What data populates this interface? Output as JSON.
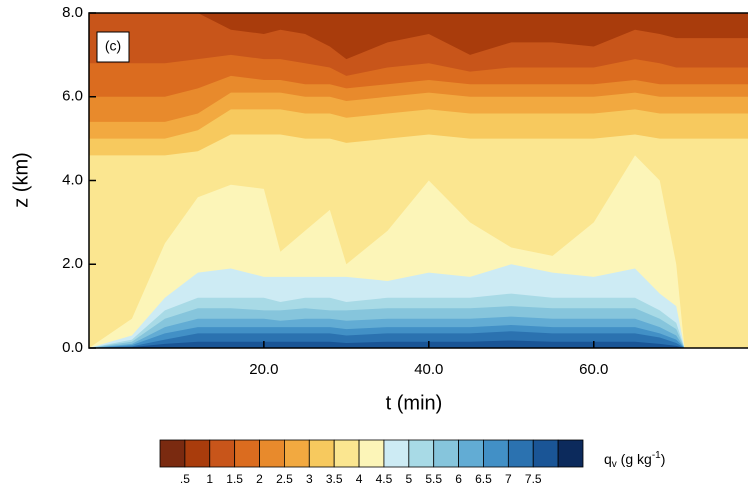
{
  "chart_data": {
    "type": "contour",
    "annotation": "(c)",
    "x_label": "t (min)",
    "y_label": "z (km)",
    "xlim": [
      -1.2,
      78.7
    ],
    "ylim": [
      0,
      8
    ],
    "xticks": [
      {
        "value": 20,
        "label": "20.0"
      },
      {
        "value": 40,
        "label": "40.0"
      },
      {
        "value": 60,
        "label": "60.0"
      }
    ],
    "yticks": [
      {
        "value": 0,
        "label": "0.0"
      },
      {
        "value": 2,
        "label": "2.0"
      },
      {
        "value": 4,
        "label": "4.0"
      },
      {
        "value": 6,
        "label": "6.0"
      },
      {
        "value": 8,
        "label": "8.0"
      }
    ],
    "colorbar_label_parts": [
      "q",
      "v",
      " (g kg",
      "-1",
      ")"
    ],
    "levels": [
      {
        "value": 0.5,
        "label": ".5"
      },
      1,
      1.5,
      2,
      2.5,
      3,
      3.5,
      4,
      4.5,
      5,
      5.5,
      6,
      6.5,
      7,
      7.5
    ],
    "colors": [
      "#7a2a10",
      "#a93c0c",
      "#c8551a",
      "#db6c1f",
      "#e88a2c",
      "#f2a940",
      "#f7c95e",
      "#fbe690",
      "#fcf5b8",
      "#cdebf4",
      "#a8dae6",
      "#86c5dc",
      "#62acd4",
      "#4290c6",
      "#2b72b0",
      "#1a5596",
      "#0c2a5c"
    ],
    "x": [
      -1.2,
      4,
      8,
      12,
      16,
      20,
      22,
      25,
      28,
      30,
      35,
      40,
      45,
      50,
      55,
      60,
      65,
      68,
      70,
      71,
      78.7
    ],
    "contour_heights": [
      [
        8,
        8,
        8,
        8,
        8,
        8,
        8,
        8,
        8,
        8,
        8,
        8,
        8,
        8,
        8,
        8,
        8,
        8,
        8,
        8,
        8
      ],
      [
        8,
        8,
        8,
        8,
        7.6,
        7.5,
        7.6,
        7.5,
        7.2,
        6.9,
        7.3,
        7.5,
        7.0,
        7.3,
        7.3,
        7.2,
        7.6,
        7.5,
        7.4,
        7.4,
        7.4
      ],
      [
        6.8,
        6.8,
        6.8,
        6.9,
        7.0,
        6.9,
        6.9,
        6.8,
        6.7,
        6.5,
        6.7,
        6.8,
        6.6,
        6.7,
        6.7,
        6.7,
        6.9,
        6.8,
        6.7,
        6.7,
        6.7
      ],
      [
        6.0,
        6.0,
        6.0,
        6.2,
        6.5,
        6.4,
        6.4,
        6.3,
        6.3,
        6.2,
        6.3,
        6.4,
        6.3,
        6.3,
        6.3,
        6.3,
        6.4,
        6.3,
        6.3,
        6.3,
        6.3
      ],
      [
        5.4,
        5.4,
        5.4,
        5.6,
        6.1,
        6.1,
        6.1,
        6.0,
        6.0,
        5.9,
        6.0,
        6.1,
        6.0,
        6.0,
        6.0,
        6.0,
        6.1,
        6.0,
        6.0,
        6.0,
        6.0
      ],
      [
        5.0,
        5.0,
        5.0,
        5.2,
        5.7,
        5.7,
        5.7,
        5.6,
        5.6,
        5.5,
        5.6,
        5.7,
        5.6,
        5.6,
        5.6,
        5.6,
        5.7,
        5.6,
        5.6,
        5.6,
        5.6
      ],
      [
        4.6,
        4.6,
        4.6,
        4.7,
        5.1,
        5.1,
        5.1,
        5.0,
        5.0,
        4.9,
        5.0,
        5.1,
        5.0,
        5.0,
        5.0,
        5.0,
        5.1,
        5.0,
        5.0,
        5.0,
        5.0
      ],
      [
        0,
        0.7,
        2.5,
        3.6,
        3.9,
        3.8,
        2.3,
        2.8,
        3.3,
        2.0,
        2.8,
        4.0,
        3.0,
        2.4,
        2.2,
        3.0,
        4.6,
        4.0,
        2.0,
        0,
        0
      ],
      [
        0,
        0.3,
        1.2,
        1.8,
        1.9,
        1.7,
        1.7,
        1.7,
        1.7,
        1.7,
        1.6,
        1.8,
        1.7,
        2.0,
        1.8,
        1.7,
        1.9,
        1.3,
        1.0,
        0,
        0
      ],
      [
        0,
        0.2,
        0.9,
        1.2,
        1.2,
        1.2,
        1.1,
        1.2,
        1.2,
        1.1,
        1.2,
        1.2,
        1.2,
        1.3,
        1.2,
        1.2,
        1.2,
        0.9,
        0.6,
        0,
        0
      ],
      [
        0,
        0.15,
        0.7,
        0.95,
        0.95,
        0.9,
        0.9,
        0.95,
        0.9,
        0.9,
        0.95,
        0.95,
        0.95,
        1.0,
        0.95,
        0.95,
        0.95,
        0.7,
        0.45,
        0,
        0
      ],
      [
        0,
        0.1,
        0.5,
        0.7,
        0.7,
        0.7,
        0.65,
        0.7,
        0.7,
        0.65,
        0.7,
        0.7,
        0.7,
        0.75,
        0.7,
        0.7,
        0.7,
        0.5,
        0.3,
        0,
        0
      ],
      [
        0,
        0.07,
        0.35,
        0.5,
        0.5,
        0.5,
        0.5,
        0.5,
        0.5,
        0.45,
        0.5,
        0.5,
        0.5,
        0.55,
        0.5,
        0.5,
        0.5,
        0.35,
        0.2,
        0,
        0
      ],
      [
        0,
        0.04,
        0.2,
        0.35,
        0.35,
        0.35,
        0.35,
        0.35,
        0.35,
        0.3,
        0.35,
        0.35,
        0.35,
        0.4,
        0.35,
        0.35,
        0.35,
        0.25,
        0.12,
        0,
        0
      ],
      [
        0,
        0.02,
        0.1,
        0.15,
        0.15,
        0.15,
        0.15,
        0.15,
        0.15,
        0.12,
        0.15,
        0.15,
        0.15,
        0.18,
        0.15,
        0.15,
        0.15,
        0.1,
        0.05,
        0,
        0
      ]
    ]
  }
}
